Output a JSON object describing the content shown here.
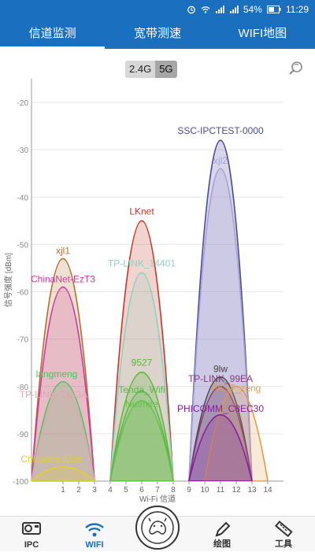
{
  "status_bar": {
    "battery": "54%",
    "time": "11:29"
  },
  "tabs": [
    {
      "label": "信道监测",
      "active": true
    },
    {
      "label": "宽带测速",
      "active": false
    },
    {
      "label": "WIFI地图",
      "active": false
    }
  ],
  "band_toggle": {
    "options": [
      "2.4G",
      "5G"
    ],
    "selected": "5G"
  },
  "chart_data": {
    "type": "area",
    "ylabel": "信号强度 [dBm]",
    "xlabel": "Wi-Fi 信道",
    "ylim": [
      -100,
      -15
    ],
    "yticks": [
      -20,
      -30,
      -40,
      -50,
      -60,
      -70,
      -80,
      -90,
      -100
    ],
    "xticks": [
      1,
      2,
      3,
      4,
      5,
      6,
      7,
      8,
      9,
      10,
      11,
      12,
      13,
      14
    ],
    "grid": "horizontal",
    "networks": [
      {
        "name": "SSC-IPCTEST-0000",
        "channel": 11,
        "signal": -28,
        "color": "#4b4b9a"
      },
      {
        "name": "xjl2",
        "channel": 11,
        "signal": -34,
        "color": "#a9a0d8"
      },
      {
        "name": "LKnet",
        "channel": 6,
        "signal": -45,
        "color": "#c0392b"
      },
      {
        "name": "TP-LINK_14401",
        "channel": 6,
        "signal": -56,
        "color": "#8fd1bf"
      },
      {
        "name": "xjl1",
        "channel": 1,
        "signal": -53,
        "color": "#b07030"
      },
      {
        "name": "ChinaNet-EzT3",
        "channel": 1,
        "signal": -59,
        "color": "#d03aa0"
      },
      {
        "name": "langmeng",
        "channel": 1,
        "signal": -79,
        "color": "#4dc25a"
      },
      {
        "name": "TP-LINK_1163A",
        "channel": 1,
        "signal": -81,
        "color": "#d9a9b0"
      },
      {
        "name": "ChinaNet-r2ch",
        "channel": 1,
        "signal": -97,
        "color": "#e0d030"
      },
      {
        "name": "9527",
        "channel": 6,
        "signal": -77,
        "color": "#5ab82e"
      },
      {
        "name": "Tenda_Wifi",
        "channel": 6,
        "signal": -81,
        "color": "#58b94a"
      },
      {
        "name": "Nutmire",
        "channel": 6,
        "signal": -83,
        "color": "#67c04a"
      },
      {
        "name": "9lw",
        "channel": 11,
        "signal": -78,
        "color": "#444444"
      },
      {
        "name": "TP-LINK_99EA",
        "channel": 11,
        "signal": -80,
        "color": "#8a3a7a"
      },
      {
        "name": "FAST_zeng",
        "channel": 12,
        "signal": -80,
        "color": "#e39a4a"
      },
      {
        "name": "PHICOMM_C8EC30",
        "channel": 11,
        "signal": -86,
        "color": "#8a1aa0"
      }
    ]
  },
  "bottom_nav": [
    {
      "label": "IPC",
      "icon": "camera-icon"
    },
    {
      "label": "WIFI",
      "icon": "wifi-icon",
      "active": true
    },
    {
      "label": "",
      "icon": "bear-logo-icon"
    },
    {
      "label": "绘图",
      "icon": "pencil-icon"
    },
    {
      "label": "工具",
      "icon": "ruler-icon"
    }
  ]
}
